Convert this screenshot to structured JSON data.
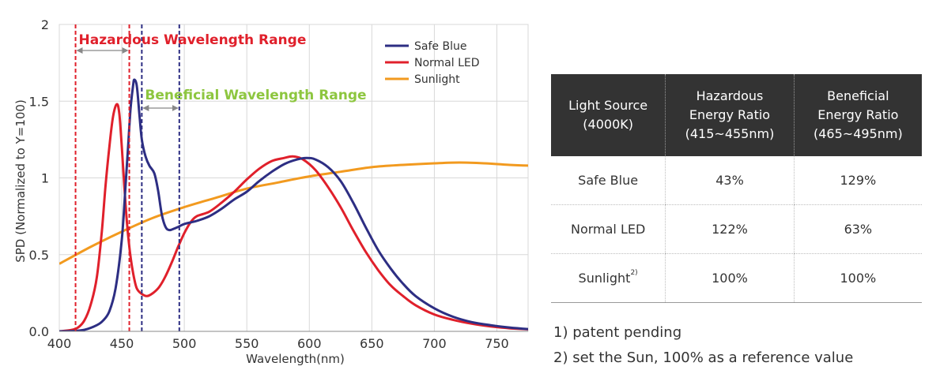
{
  "chart_data": {
    "type": "line",
    "xlabel": "Wavelength(nm)",
    "ylabel": "SPD (Normalized to Y=100)",
    "xlim": [
      400,
      775
    ],
    "ylim": [
      0,
      2
    ],
    "x_ticks": [
      "400",
      "450",
      "500",
      "550",
      "600",
      "650",
      "700",
      "750"
    ],
    "y_ticks": [
      "0.0",
      "0.5",
      "1",
      "1.5",
      "2"
    ],
    "grid": true,
    "legend_position": "top-right",
    "series": [
      {
        "name": "Safe Blue",
        "color": "#2d2e83",
        "points": [
          [
            400,
            0
          ],
          [
            410,
            0.002
          ],
          [
            420,
            0.01
          ],
          [
            430,
            0.04
          ],
          [
            435,
            0.07
          ],
          [
            440,
            0.13
          ],
          [
            445,
            0.28
          ],
          [
            450,
            0.6
          ],
          [
            453,
            0.95
          ],
          [
            455,
            1.2
          ],
          [
            457,
            1.45
          ],
          [
            459,
            1.6
          ],
          [
            460,
            1.64
          ],
          [
            462,
            1.6
          ],
          [
            464,
            1.42
          ],
          [
            466,
            1.25
          ],
          [
            469,
            1.14
          ],
          [
            472,
            1.08
          ],
          [
            476,
            1.03
          ],
          [
            479,
            0.92
          ],
          [
            482,
            0.76
          ],
          [
            485,
            0.68
          ],
          [
            488,
            0.66
          ],
          [
            492,
            0.67
          ],
          [
            495,
            0.68
          ],
          [
            500,
            0.7
          ],
          [
            510,
            0.72
          ],
          [
            520,
            0.75
          ],
          [
            530,
            0.8
          ],
          [
            540,
            0.86
          ],
          [
            550,
            0.91
          ],
          [
            560,
            0.98
          ],
          [
            570,
            1.04
          ],
          [
            580,
            1.09
          ],
          [
            590,
            1.12
          ],
          [
            598,
            1.13
          ],
          [
            605,
            1.12
          ],
          [
            615,
            1.07
          ],
          [
            625,
            0.98
          ],
          [
            635,
            0.84
          ],
          [
            645,
            0.68
          ],
          [
            655,
            0.53
          ],
          [
            665,
            0.41
          ],
          [
            675,
            0.31
          ],
          [
            685,
            0.23
          ],
          [
            700,
            0.15
          ],
          [
            715,
            0.095
          ],
          [
            730,
            0.06
          ],
          [
            745,
            0.04
          ],
          [
            760,
            0.025
          ],
          [
            775,
            0.015
          ]
        ]
      },
      {
        "name": "Normal LED",
        "color": "#e0202b",
        "points": [
          [
            400,
            0
          ],
          [
            410,
            0.01
          ],
          [
            415,
            0.025
          ],
          [
            420,
            0.07
          ],
          [
            425,
            0.17
          ],
          [
            430,
            0.35
          ],
          [
            434,
            0.65
          ],
          [
            437,
            0.95
          ],
          [
            440,
            1.2
          ],
          [
            443,
            1.4
          ],
          [
            446,
            1.48
          ],
          [
            448,
            1.42
          ],
          [
            450,
            1.2
          ],
          [
            452,
            0.95
          ],
          [
            454,
            0.72
          ],
          [
            456,
            0.55
          ],
          [
            458,
            0.43
          ],
          [
            460,
            0.34
          ],
          [
            462,
            0.28
          ],
          [
            465,
            0.25
          ],
          [
            470,
            0.23
          ],
          [
            475,
            0.25
          ],
          [
            480,
            0.29
          ],
          [
            485,
            0.36
          ],
          [
            490,
            0.45
          ],
          [
            495,
            0.55
          ],
          [
            500,
            0.64
          ],
          [
            505,
            0.71
          ],
          [
            510,
            0.75
          ],
          [
            520,
            0.78
          ],
          [
            530,
            0.84
          ],
          [
            540,
            0.91
          ],
          [
            550,
            0.99
          ],
          [
            560,
            1.06
          ],
          [
            570,
            1.11
          ],
          [
            580,
            1.13
          ],
          [
            587,
            1.14
          ],
          [
            595,
            1.12
          ],
          [
            605,
            1.05
          ],
          [
            615,
            0.94
          ],
          [
            625,
            0.81
          ],
          [
            635,
            0.66
          ],
          [
            645,
            0.52
          ],
          [
            655,
            0.4
          ],
          [
            665,
            0.3
          ],
          [
            675,
            0.23
          ],
          [
            685,
            0.17
          ],
          [
            700,
            0.11
          ],
          [
            715,
            0.075
          ],
          [
            730,
            0.05
          ],
          [
            745,
            0.032
          ],
          [
            760,
            0.02
          ],
          [
            775,
            0.013
          ]
        ]
      },
      {
        "name": "Sunlight",
        "color": "#f29a1f",
        "points": [
          [
            400,
            0.44
          ],
          [
            425,
            0.55
          ],
          [
            450,
            0.65
          ],
          [
            475,
            0.74
          ],
          [
            500,
            0.81
          ],
          [
            525,
            0.87
          ],
          [
            550,
            0.93
          ],
          [
            575,
            0.97
          ],
          [
            600,
            1.01
          ],
          [
            625,
            1.04
          ],
          [
            650,
            1.07
          ],
          [
            675,
            1.085
          ],
          [
            700,
            1.095
          ],
          [
            720,
            1.1
          ],
          [
            740,
            1.095
          ],
          [
            760,
            1.085
          ],
          [
            775,
            1.08
          ]
        ]
      }
    ],
    "reference_lines": [
      {
        "x": 413,
        "color": "#e0202b"
      },
      {
        "x": 456,
        "color": "#e0202b"
      },
      {
        "x": 466,
        "color": "#2d2e83"
      },
      {
        "x": 496,
        "color": "#2d2e83"
      }
    ],
    "annotations": [
      {
        "text": "Hazardous Wavelength Range",
        "color": "#e0202b",
        "x_from": 413,
        "x_to": 456
      },
      {
        "text": "Beneficial Wavelength Range",
        "color": "#8dc63f",
        "x_from": 466,
        "x_to": 496
      }
    ]
  },
  "table": {
    "headers": [
      [
        "Light Source",
        "(4000K)"
      ],
      [
        "Hazardous",
        "Energy Ratio",
        "(415~455nm)"
      ],
      [
        "Beneficial",
        "Energy Ratio",
        "(465~495nm)"
      ]
    ],
    "rows": [
      {
        "source": "Safe Blue",
        "sup": "",
        "hazardous": "43%",
        "beneficial": "129%"
      },
      {
        "source": "Normal LED",
        "sup": "",
        "hazardous": "122%",
        "beneficial": "63%"
      },
      {
        "source": "Sunlight",
        "sup": "2)",
        "hazardous": "100%",
        "beneficial": "100%"
      }
    ]
  },
  "footnotes": {
    "note1": "1) patent pending",
    "note2": "2) set the Sun, 100%  as a reference value"
  }
}
